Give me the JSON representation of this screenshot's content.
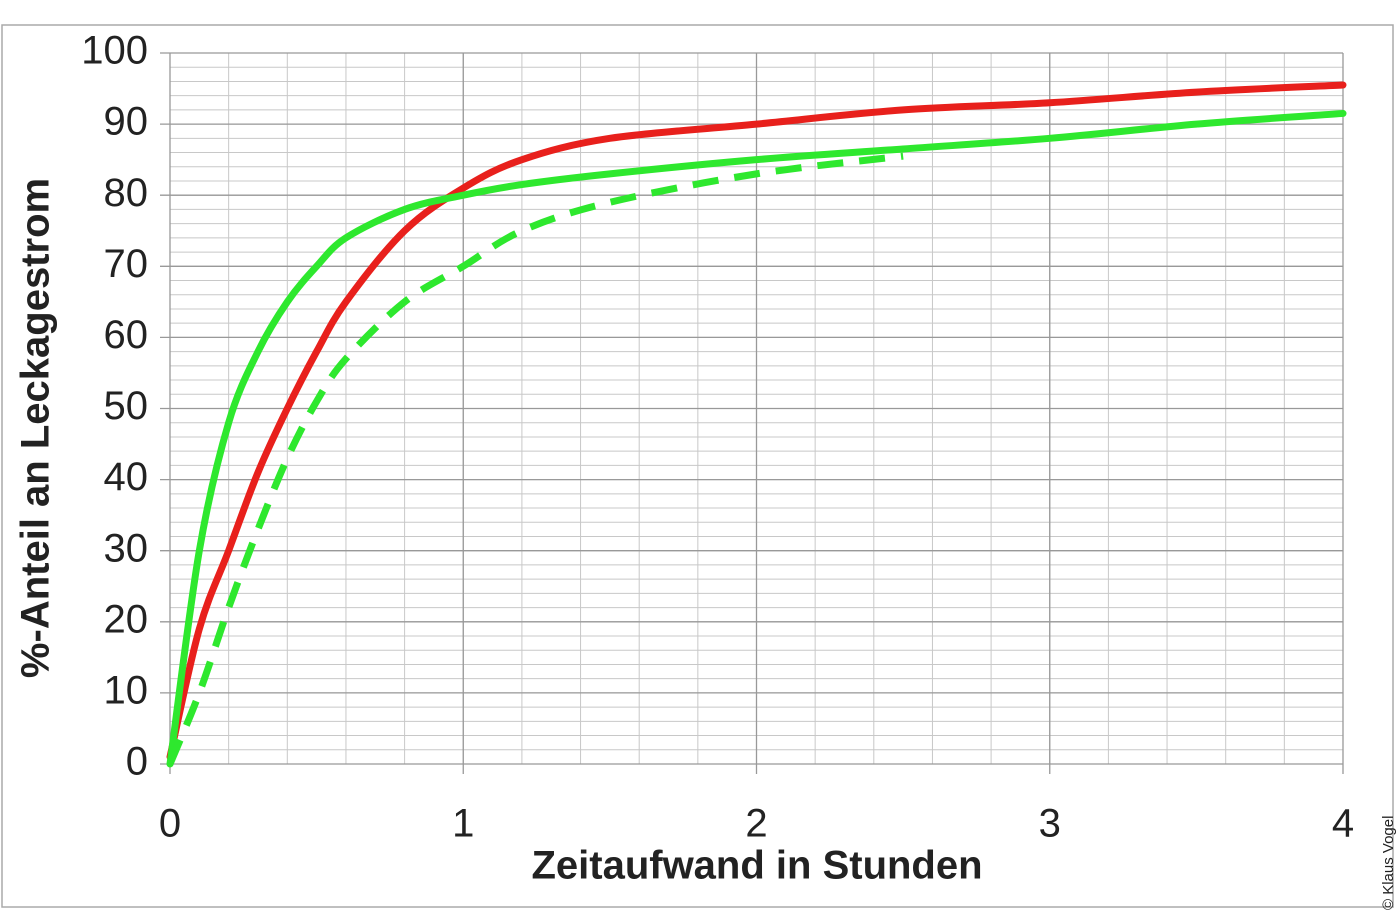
{
  "chart_data": {
    "type": "line",
    "x_label": "Zeitaufwand in Stunden",
    "y_label": "%-Anteil an Leckagestrom",
    "credit": "© Klaus Vogel",
    "x": [
      0,
      0.1,
      0.2,
      0.3,
      0.4,
      0.5,
      0.6,
      0.8,
      1.0,
      1.2,
      1.5,
      2,
      2.5,
      3,
      3.5,
      4
    ],
    "series": [
      {
        "color": "#e8201c",
        "dashed": false,
        "values": [
          1,
          19,
          30,
          41,
          50,
          58,
          65,
          75,
          81,
          85,
          88,
          90,
          92,
          93,
          94.5,
          95.5
        ]
      },
      {
        "color": "#2ee82e",
        "dashed": false,
        "values": [
          0,
          30,
          48,
          58,
          65,
          70,
          74,
          78,
          80,
          81.5,
          83,
          85,
          86.5,
          88,
          90,
          91.5
        ]
      },
      {
        "color": "#2ee82e",
        "dashed": true,
        "values": [
          0,
          10,
          22,
          33,
          43,
          51,
          57,
          65,
          70,
          75,
          79,
          83,
          85.5,
          null,
          null,
          null
        ]
      }
    ],
    "xlim": [
      0,
      4
    ],
    "xticks": [
      0,
      1,
      2,
      3,
      4
    ],
    "ylim": [
      0,
      100
    ],
    "yticks": [
      0,
      10,
      20,
      30,
      40,
      50,
      60,
      70,
      80,
      90,
      100
    ],
    "grid": true,
    "minor_grid": {
      "x": 0.2,
      "y": 2
    }
  }
}
